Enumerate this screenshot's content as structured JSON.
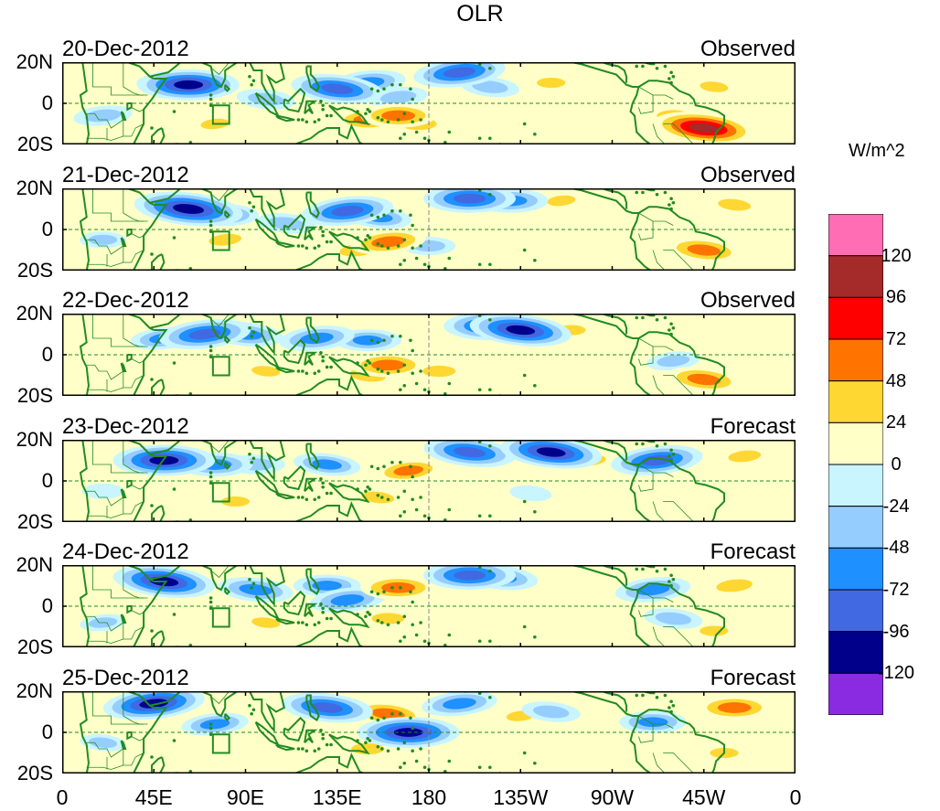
{
  "title": "OLR",
  "units": "W/m^2",
  "panels": [
    {
      "date": "20-Dec-2012",
      "kind": "Observed"
    },
    {
      "date": "21-Dec-2012",
      "kind": "Observed"
    },
    {
      "date": "22-Dec-2012",
      "kind": "Observed"
    },
    {
      "date": "23-Dec-2012",
      "kind": "Forecast"
    },
    {
      "date": "24-Dec-2012",
      "kind": "Forecast"
    },
    {
      "date": "25-Dec-2012",
      "kind": "Forecast"
    }
  ],
  "lat_labels": [
    "20N",
    "0",
    "20S"
  ],
  "lon_labels": [
    "0",
    "45E",
    "90E",
    "135E",
    "180",
    "135W",
    "90W",
    "45W",
    "0"
  ],
  "colorbar": {
    "labels": [
      "120",
      "96",
      "72",
      "48",
      "24",
      "0",
      "-24",
      "-48",
      "-72",
      "-96",
      "-120"
    ],
    "colors": [
      "#ff6eb4",
      "#a52a2a",
      "#ff0000",
      "#ff7300",
      "#ffd732",
      "#ffffc8",
      "#c8f5ff",
      "#96cdff",
      "#1e90ff",
      "#4169e1",
      "#00008b",
      "#8a2be2"
    ]
  },
  "palette": {
    "land": "#228b22",
    "neutral": "#ffffc8"
  },
  "anomalies": [
    [
      {
        "lon": 55,
        "lat": 8,
        "v": -72
      },
      {
        "lon": 62,
        "lat": 9,
        "v": -110
      },
      {
        "lon": 100,
        "lat": 2,
        "v": -48
      },
      {
        "lon": 135,
        "lat": 7,
        "v": -96
      },
      {
        "lon": 150,
        "lat": 10,
        "v": -72
      },
      {
        "lon": 165,
        "lat": 3,
        "v": -48
      },
      {
        "lon": 150,
        "lat": -8,
        "v": 56
      },
      {
        "lon": 165,
        "lat": -6,
        "v": 72
      },
      {
        "lon": 175,
        "lat": -10,
        "v": 48
      },
      {
        "lon": 195,
        "lat": 15,
        "v": -96
      },
      {
        "lon": 210,
        "lat": 8,
        "v": -48
      },
      {
        "lon": 240,
        "lat": 10,
        "v": 30
      },
      {
        "lon": 315,
        "lat": -12,
        "v": 110
      },
      {
        "lon": 300,
        "lat": -6,
        "v": 40
      },
      {
        "lon": 320,
        "lat": 8,
        "v": 30
      },
      {
        "lon": 20,
        "lat": -6,
        "v": -48
      },
      {
        "lon": 75,
        "lat": -10,
        "v": 30
      },
      {
        "lon": 270,
        "lat": -5,
        "v": 24
      }
    ],
    [
      {
        "lon": 62,
        "lat": 10,
        "v": -120
      },
      {
        "lon": 80,
        "lat": 7,
        "v": -60
      },
      {
        "lon": 110,
        "lat": 3,
        "v": -48
      },
      {
        "lon": 140,
        "lat": 9,
        "v": -96
      },
      {
        "lon": 155,
        "lat": 6,
        "v": -60
      },
      {
        "lon": 160,
        "lat": -6,
        "v": 72
      },
      {
        "lon": 145,
        "lat": -10,
        "v": 48
      },
      {
        "lon": 200,
        "lat": 15,
        "v": -96
      },
      {
        "lon": 220,
        "lat": 14,
        "v": -72
      },
      {
        "lon": 245,
        "lat": 14,
        "v": 30
      },
      {
        "lon": 315,
        "lat": -10,
        "v": 72
      },
      {
        "lon": 330,
        "lat": 12,
        "v": 40
      },
      {
        "lon": 80,
        "lat": -5,
        "v": 40
      },
      {
        "lon": 20,
        "lat": -5,
        "v": -30
      },
      {
        "lon": 180,
        "lat": -8,
        "v": -40
      }
    ],
    [
      {
        "lon": 50,
        "lat": 8,
        "v": -60
      },
      {
        "lon": 70,
        "lat": 10,
        "v": -96
      },
      {
        "lon": 90,
        "lat": 10,
        "v": -72
      },
      {
        "lon": 125,
        "lat": 8,
        "v": -72
      },
      {
        "lon": 150,
        "lat": 7,
        "v": -60
      },
      {
        "lon": 160,
        "lat": -5,
        "v": 72
      },
      {
        "lon": 150,
        "lat": -10,
        "v": 48
      },
      {
        "lon": 210,
        "lat": 14,
        "v": -96
      },
      {
        "lon": 225,
        "lat": 12,
        "v": -110
      },
      {
        "lon": 250,
        "lat": 12,
        "v": 30
      },
      {
        "lon": 315,
        "lat": -12,
        "v": 72
      },
      {
        "lon": 300,
        "lat": -3,
        "v": -40
      },
      {
        "lon": 100,
        "lat": -8,
        "v": 30
      },
      {
        "lon": 185,
        "lat": -8,
        "v": 40
      },
      {
        "lon": 335,
        "lat": 12,
        "v": 24
      }
    ],
    [
      {
        "lon": 50,
        "lat": 10,
        "v": -110
      },
      {
        "lon": 75,
        "lat": 8,
        "v": -72
      },
      {
        "lon": 95,
        "lat": 8,
        "v": -48
      },
      {
        "lon": 130,
        "lat": 8,
        "v": -60
      },
      {
        "lon": 170,
        "lat": 5,
        "v": 60
      },
      {
        "lon": 155,
        "lat": -8,
        "v": 40
      },
      {
        "lon": 200,
        "lat": 14,
        "v": -96
      },
      {
        "lon": 240,
        "lat": 14,
        "v": -110
      },
      {
        "lon": 292,
        "lat": 10,
        "v": -96
      },
      {
        "lon": 260,
        "lat": 10,
        "v": 30
      },
      {
        "lon": 300,
        "lat": -10,
        "v": 24
      },
      {
        "lon": 335,
        "lat": 12,
        "v": 40
      },
      {
        "lon": 85,
        "lat": -10,
        "v": 30
      },
      {
        "lon": 20,
        "lat": -5,
        "v": -24
      },
      {
        "lon": 230,
        "lat": -6,
        "v": -24
      }
    ],
    [
      {
        "lon": 50,
        "lat": 12,
        "v": -110
      },
      {
        "lon": 95,
        "lat": 8,
        "v": -72
      },
      {
        "lon": 130,
        "lat": 10,
        "v": -60
      },
      {
        "lon": 140,
        "lat": 3,
        "v": -72
      },
      {
        "lon": 165,
        "lat": 9,
        "v": 72
      },
      {
        "lon": 160,
        "lat": -6,
        "v": 40
      },
      {
        "lon": 200,
        "lat": 15,
        "v": -96
      },
      {
        "lon": 215,
        "lat": 14,
        "v": -72
      },
      {
        "lon": 290,
        "lat": 8,
        "v": -72
      },
      {
        "lon": 300,
        "lat": -6,
        "v": -48
      },
      {
        "lon": 330,
        "lat": 10,
        "v": 48
      },
      {
        "lon": 320,
        "lat": -12,
        "v": 30
      },
      {
        "lon": 100,
        "lat": -8,
        "v": 30
      },
      {
        "lon": 20,
        "lat": -8,
        "v": -30
      },
      {
        "lon": 250,
        "lat": 8,
        "v": 24
      }
    ],
    [
      {
        "lon": 45,
        "lat": 14,
        "v": -110
      },
      {
        "lon": 75,
        "lat": 4,
        "v": -60
      },
      {
        "lon": 130,
        "lat": 12,
        "v": -96
      },
      {
        "lon": 160,
        "lat": 9,
        "v": 72
      },
      {
        "lon": 170,
        "lat": 0,
        "v": -110
      },
      {
        "lon": 150,
        "lat": -8,
        "v": 40
      },
      {
        "lon": 195,
        "lat": 14,
        "v": -72
      },
      {
        "lon": 240,
        "lat": 10,
        "v": -48
      },
      {
        "lon": 290,
        "lat": 5,
        "v": -60
      },
      {
        "lon": 330,
        "lat": 12,
        "v": 72
      },
      {
        "lon": 325,
        "lat": -10,
        "v": 30
      },
      {
        "lon": 20,
        "lat": -5,
        "v": -30
      },
      {
        "lon": 100,
        "lat": -6,
        "v": 24
      },
      {
        "lon": 225,
        "lat": 8,
        "v": 30
      }
    ]
  ]
}
